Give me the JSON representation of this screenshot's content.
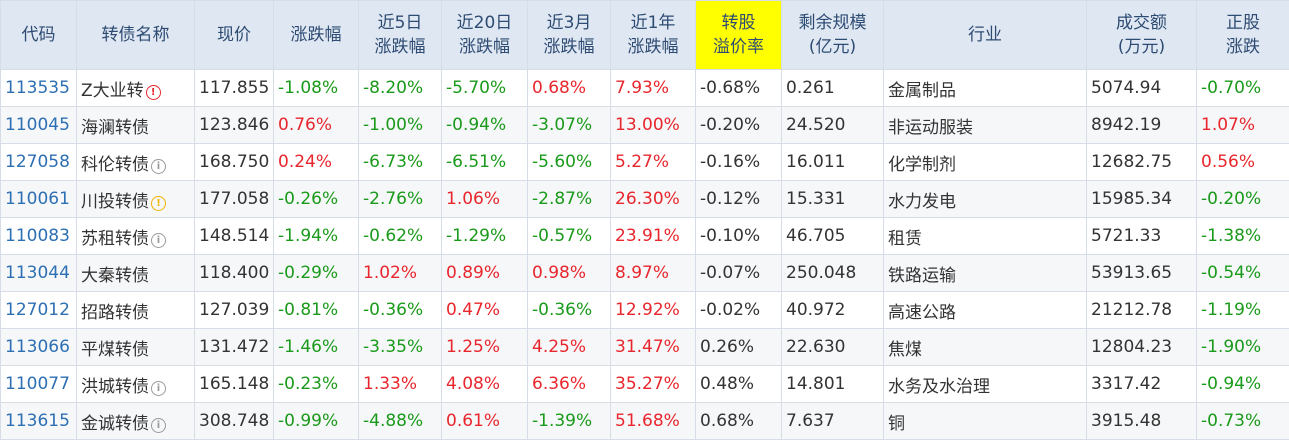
{
  "headers": [
    {
      "line1": "代码",
      "line2": ""
    },
    {
      "line1": "转债名称",
      "line2": ""
    },
    {
      "line1": "现价",
      "line2": ""
    },
    {
      "line1": "涨跌幅",
      "line2": ""
    },
    {
      "line1": "近5日",
      "line2": "涨跌幅"
    },
    {
      "line1": "近20日",
      "line2": "涨跌幅"
    },
    {
      "line1": "近3月",
      "line2": "涨跌幅"
    },
    {
      "line1": "近1年",
      "line2": "涨跌幅"
    },
    {
      "line1": "转股",
      "line2": "溢价率"
    },
    {
      "line1": "剩余规模",
      "line2": "(亿元)"
    },
    {
      "line1": "行业",
      "line2": ""
    },
    {
      "line1": "成交额",
      "line2": "(万元)"
    },
    {
      "line1": "正股",
      "line2": "涨跌"
    }
  ],
  "colors": {
    "up": "#e8262d",
    "down": "#1a9a1a",
    "code": "#2d6fb3",
    "header_bg": "#dfe8f2",
    "highlight": "#ffff00"
  },
  "rows": [
    {
      "code": "113535",
      "name": "Z大业转",
      "icon": "red",
      "icon_name": "exclamation-circle-icon",
      "price": "117.855",
      "chg": "-1.08%",
      "d5": "-8.20%",
      "d20": "-5.70%",
      "m3": "0.68%",
      "y1": "7.93%",
      "premium": "-0.68%",
      "scale": "0.261",
      "industry": "金属制品",
      "turnover": "5074.94",
      "stock_chg": "-0.70%"
    },
    {
      "code": "110045",
      "name": "海澜转债",
      "icon": "",
      "icon_name": "",
      "price": "123.846",
      "chg": "0.76%",
      "d5": "-1.00%",
      "d20": "-0.94%",
      "m3": "-3.07%",
      "y1": "13.00%",
      "premium": "-0.20%",
      "scale": "24.520",
      "industry": "非运动服装",
      "turnover": "8942.19",
      "stock_chg": "1.07%"
    },
    {
      "code": "127058",
      "name": "科伦转债",
      "icon": "grey",
      "icon_name": "info-circle-icon",
      "price": "168.750",
      "chg": "0.24%",
      "d5": "-6.73%",
      "d20": "-6.51%",
      "m3": "-5.60%",
      "y1": "5.27%",
      "premium": "-0.16%",
      "scale": "16.011",
      "industry": "化学制剂",
      "turnover": "12682.75",
      "stock_chg": "0.56%"
    },
    {
      "code": "110061",
      "name": "川投转债",
      "icon": "yellow",
      "icon_name": "warning-circle-icon",
      "price": "177.058",
      "chg": "-0.26%",
      "d5": "-2.76%",
      "d20": "1.06%",
      "m3": "-2.87%",
      "y1": "26.30%",
      "premium": "-0.12%",
      "scale": "15.331",
      "industry": "水力发电",
      "turnover": "15985.34",
      "stock_chg": "-0.20%"
    },
    {
      "code": "110083",
      "name": "苏租转债",
      "icon": "grey",
      "icon_name": "info-circle-icon",
      "price": "148.514",
      "chg": "-1.94%",
      "d5": "-0.62%",
      "d20": "-1.29%",
      "m3": "-0.57%",
      "y1": "23.91%",
      "premium": "-0.10%",
      "scale": "46.705",
      "industry": "租赁",
      "turnover": "5721.33",
      "stock_chg": "-1.38%"
    },
    {
      "code": "113044",
      "name": "大秦转债",
      "icon": "",
      "icon_name": "",
      "price": "118.400",
      "chg": "-0.29%",
      "d5": "1.02%",
      "d20": "0.89%",
      "m3": "0.98%",
      "y1": "8.97%",
      "premium": "-0.07%",
      "scale": "250.048",
      "industry": "铁路运输",
      "turnover": "53913.65",
      "stock_chg": "-0.54%"
    },
    {
      "code": "127012",
      "name": "招路转债",
      "icon": "",
      "icon_name": "",
      "price": "127.039",
      "chg": "-0.81%",
      "d5": "-0.36%",
      "d20": "0.47%",
      "m3": "-0.36%",
      "y1": "12.92%",
      "premium": "-0.02%",
      "scale": "40.972",
      "industry": "高速公路",
      "turnover": "21212.78",
      "stock_chg": "-1.19%"
    },
    {
      "code": "113066",
      "name": "平煤转债",
      "icon": "",
      "icon_name": "",
      "price": "131.472",
      "chg": "-1.46%",
      "d5": "-3.35%",
      "d20": "1.25%",
      "m3": "4.25%",
      "y1": "31.47%",
      "premium": "0.26%",
      "scale": "22.630",
      "industry": "焦煤",
      "turnover": "12804.23",
      "stock_chg": "-1.90%"
    },
    {
      "code": "110077",
      "name": "洪城转债",
      "icon": "grey",
      "icon_name": "info-circle-icon",
      "price": "165.148",
      "chg": "-0.23%",
      "d5": "1.33%",
      "d20": "4.08%",
      "m3": "6.36%",
      "y1": "35.27%",
      "premium": "0.48%",
      "scale": "14.801",
      "industry": "水务及水治理",
      "turnover": "3317.42",
      "stock_chg": "-0.94%"
    },
    {
      "code": "113615",
      "name": "金诚转债",
      "icon": "grey",
      "icon_name": "info-circle-icon",
      "price": "308.748",
      "chg": "-0.99%",
      "d5": "-4.88%",
      "d20": "0.61%",
      "m3": "-1.39%",
      "y1": "51.68%",
      "premium": "0.68%",
      "scale": "7.637",
      "industry": "铜",
      "turnover": "3915.48",
      "stock_chg": "-0.73%"
    }
  ]
}
